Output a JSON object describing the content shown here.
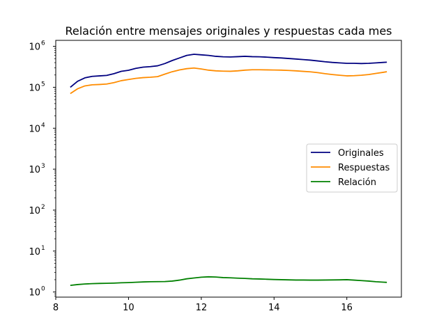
{
  "chart_data": {
    "type": "line",
    "title": "Relación entre mensajes originales y respuestas cada mes",
    "xlabel": "",
    "ylabel": "",
    "yscale": "log",
    "xlim": [
      8.0,
      17.5
    ],
    "ylim": [
      0.75,
      1400000
    ],
    "grid": false,
    "legend_position": "center-right",
    "x_ticks": [
      8,
      10,
      12,
      14,
      16
    ],
    "y_ticks": [
      1,
      10,
      100,
      1000,
      10000,
      100000,
      1000000
    ],
    "y_tick_exponents": [
      0,
      1,
      2,
      3,
      4,
      5,
      6
    ],
    "x": [
      8.4,
      8.6,
      8.8,
      9.0,
      9.2,
      9.4,
      9.6,
      9.8,
      10.0,
      10.2,
      10.4,
      10.6,
      10.8,
      11.0,
      11.2,
      11.4,
      11.6,
      11.8,
      12.0,
      12.2,
      12.4,
      12.6,
      12.8,
      13.0,
      13.2,
      13.4,
      13.6,
      13.8,
      14.0,
      14.2,
      14.4,
      14.6,
      14.8,
      15.0,
      15.2,
      15.4,
      15.6,
      15.8,
      16.0,
      16.2,
      16.4,
      16.6,
      16.8,
      17.0,
      17.1
    ],
    "series": [
      {
        "name": "Originales",
        "color": "#000080",
        "values": [
          100000,
          140000,
          170000,
          185000,
          190000,
          195000,
          215000,
          245000,
          260000,
          290000,
          310000,
          320000,
          335000,
          380000,
          450000,
          520000,
          600000,
          640000,
          620000,
          600000,
          570000,
          555000,
          550000,
          560000,
          570000,
          560000,
          555000,
          545000,
          530000,
          520000,
          505000,
          490000,
          475000,
          460000,
          440000,
          420000,
          405000,
          395000,
          385000,
          385000,
          380000,
          385000,
          395000,
          405000,
          410000
        ]
      },
      {
        "name": "Respuestas",
        "color": "#ff8c00",
        "values": [
          70000,
          92000,
          108000,
          115000,
          117000,
          120000,
          130000,
          145000,
          155000,
          165000,
          172000,
          176000,
          182000,
          210000,
          240000,
          265000,
          285000,
          295000,
          280000,
          262000,
          252000,
          248000,
          246000,
          252000,
          262000,
          268000,
          268000,
          266000,
          264000,
          262000,
          258000,
          252000,
          245000,
          238000,
          228000,
          215000,
          205000,
          197000,
          190000,
          192000,
          197000,
          205000,
          218000,
          232000,
          240000
        ]
      },
      {
        "name": "Relación",
        "color": "#008000",
        "values": [
          1.45,
          1.52,
          1.57,
          1.6,
          1.62,
          1.63,
          1.65,
          1.68,
          1.7,
          1.73,
          1.76,
          1.78,
          1.79,
          1.8,
          1.85,
          1.95,
          2.1,
          2.2,
          2.3,
          2.35,
          2.32,
          2.25,
          2.22,
          2.18,
          2.15,
          2.1,
          2.08,
          2.05,
          2.02,
          2.0,
          1.98,
          1.96,
          1.96,
          1.95,
          1.95,
          1.96,
          1.97,
          1.98,
          2.0,
          1.95,
          1.9,
          1.85,
          1.78,
          1.74,
          1.72
        ]
      }
    ]
  }
}
